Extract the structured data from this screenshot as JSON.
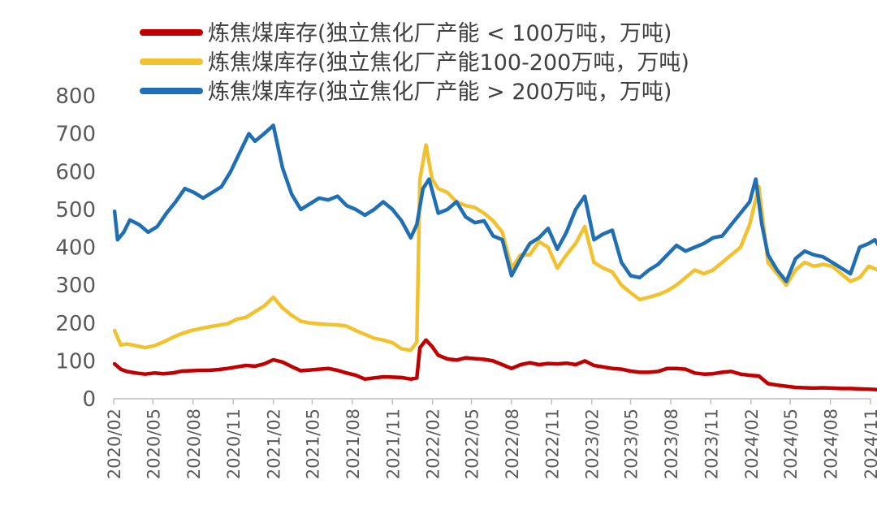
{
  "chart_data": {
    "type": "line",
    "title": "",
    "xlabel": "",
    "ylabel": "",
    "ylim": [
      0,
      800
    ],
    "yticks": [
      0,
      100,
      200,
      300,
      400,
      500,
      600,
      700,
      800
    ],
    "xlim": [
      "2020-02",
      "2024-11"
    ],
    "xticks": [
      "2020/02",
      "2020/05",
      "2020/08",
      "2020/11",
      "2021/02",
      "2021/05",
      "2021/08",
      "2021/11",
      "2022/02",
      "2022/05",
      "2022/08",
      "2022/11",
      "2023/02",
      "2023/05",
      "2023/08",
      "2023/11",
      "2024/02",
      "2024/05",
      "2024/08",
      "2024/11"
    ],
    "grid": false,
    "legend_position": "top",
    "series": [
      {
        "name": "炼焦煤库存(独立焦化厂产能 < 100万吨，万吨)",
        "color": "#c00000",
        "points": [
          [
            "2020-02-03",
            92
          ],
          [
            "2020-02-17",
            78
          ],
          [
            "2020-03-02",
            72
          ],
          [
            "2020-03-23",
            68
          ],
          [
            "2020-04-13",
            65
          ],
          [
            "2020-05-04",
            68
          ],
          [
            "2020-05-25",
            66
          ],
          [
            "2020-06-15",
            68
          ],
          [
            "2020-07-06",
            73
          ],
          [
            "2020-07-27",
            74
          ],
          [
            "2020-08-17",
            75
          ],
          [
            "2020-09-07",
            75
          ],
          [
            "2020-09-28",
            77
          ],
          [
            "2020-10-19",
            80
          ],
          [
            "2020-11-09",
            84
          ],
          [
            "2020-11-30",
            88
          ],
          [
            "2020-12-21",
            86
          ],
          [
            "2021-01-11",
            92
          ],
          [
            "2021-02-01",
            103
          ],
          [
            "2021-02-22",
            97
          ],
          [
            "2021-03-15",
            85
          ],
          [
            "2021-04-05",
            74
          ],
          [
            "2021-04-26",
            76
          ],
          [
            "2021-05-17",
            78
          ],
          [
            "2021-06-07",
            80
          ],
          [
            "2021-06-28",
            75
          ],
          [
            "2021-07-19",
            68
          ],
          [
            "2021-08-09",
            62
          ],
          [
            "2021-08-30",
            52
          ],
          [
            "2021-09-20",
            55
          ],
          [
            "2021-10-11",
            58
          ],
          [
            "2021-11-01",
            57
          ],
          [
            "2021-11-22",
            56
          ],
          [
            "2021-12-13",
            52
          ],
          [
            "2021-12-27",
            55
          ],
          [
            "2022-01-03",
            135
          ],
          [
            "2022-01-17",
            155
          ],
          [
            "2022-01-31",
            138
          ],
          [
            "2022-02-14",
            115
          ],
          [
            "2022-03-07",
            105
          ],
          [
            "2022-03-28",
            102
          ],
          [
            "2022-04-18",
            108
          ],
          [
            "2022-05-09",
            106
          ],
          [
            "2022-05-30",
            104
          ],
          [
            "2022-06-20",
            100
          ],
          [
            "2022-07-11",
            90
          ],
          [
            "2022-08-01",
            80
          ],
          [
            "2022-08-22",
            90
          ],
          [
            "2022-09-12",
            95
          ],
          [
            "2022-10-03",
            90
          ],
          [
            "2022-10-24",
            93
          ],
          [
            "2022-11-14",
            92
          ],
          [
            "2022-12-05",
            94
          ],
          [
            "2022-12-26",
            90
          ],
          [
            "2023-01-16",
            100
          ],
          [
            "2023-02-06",
            88
          ],
          [
            "2023-02-27",
            84
          ],
          [
            "2023-03-20",
            80
          ],
          [
            "2023-04-10",
            78
          ],
          [
            "2023-05-01",
            73
          ],
          [
            "2023-05-22",
            70
          ],
          [
            "2023-06-12",
            70
          ],
          [
            "2023-07-03",
            72
          ],
          [
            "2023-07-24",
            80
          ],
          [
            "2023-08-14",
            80
          ],
          [
            "2023-09-04",
            78
          ],
          [
            "2023-09-25",
            68
          ],
          [
            "2023-10-16",
            65
          ],
          [
            "2023-11-06",
            66
          ],
          [
            "2023-11-27",
            70
          ],
          [
            "2023-12-18",
            72
          ],
          [
            "2024-01-08",
            65
          ],
          [
            "2024-01-29",
            62
          ],
          [
            "2024-02-19",
            60
          ],
          [
            "2024-03-11",
            40
          ],
          [
            "2024-04-01",
            36
          ],
          [
            "2024-04-22",
            33
          ],
          [
            "2024-05-13",
            30
          ],
          [
            "2024-06-03",
            29
          ],
          [
            "2024-06-24",
            28
          ],
          [
            "2024-07-15",
            29
          ],
          [
            "2024-08-05",
            28
          ],
          [
            "2024-08-26",
            27
          ],
          [
            "2024-09-16",
            27
          ],
          [
            "2024-10-07",
            26
          ],
          [
            "2024-10-28",
            25
          ],
          [
            "2024-11-18",
            24
          ]
        ]
      },
      {
        "name": "炼焦煤库存(独立焦化厂产能100-200万吨，万吨)",
        "color": "#f2c12e",
        "points": [
          [
            "2020-02-03",
            180
          ],
          [
            "2020-02-17",
            142
          ],
          [
            "2020-03-02",
            145
          ],
          [
            "2020-03-23",
            140
          ],
          [
            "2020-04-13",
            135
          ],
          [
            "2020-05-04",
            140
          ],
          [
            "2020-05-25",
            150
          ],
          [
            "2020-06-15",
            162
          ],
          [
            "2020-07-06",
            172
          ],
          [
            "2020-07-27",
            180
          ],
          [
            "2020-08-17",
            185
          ],
          [
            "2020-09-07",
            190
          ],
          [
            "2020-09-28",
            194
          ],
          [
            "2020-10-19",
            198
          ],
          [
            "2020-11-09",
            210
          ],
          [
            "2020-11-30",
            215
          ],
          [
            "2020-12-21",
            230
          ],
          [
            "2021-01-11",
            245
          ],
          [
            "2021-02-01",
            268
          ],
          [
            "2021-02-22",
            240
          ],
          [
            "2021-03-15",
            220
          ],
          [
            "2021-04-05",
            205
          ],
          [
            "2021-04-26",
            200
          ],
          [
            "2021-05-17",
            198
          ],
          [
            "2021-06-07",
            196
          ],
          [
            "2021-06-28",
            195
          ],
          [
            "2021-07-19",
            192
          ],
          [
            "2021-08-09",
            180
          ],
          [
            "2021-08-30",
            170
          ],
          [
            "2021-09-20",
            160
          ],
          [
            "2021-10-11",
            155
          ],
          [
            "2021-11-01",
            148
          ],
          [
            "2021-11-22",
            132
          ],
          [
            "2021-12-13",
            128
          ],
          [
            "2021-12-27",
            150
          ],
          [
            "2022-01-03",
            580
          ],
          [
            "2022-01-17",
            670
          ],
          [
            "2022-01-31",
            580
          ],
          [
            "2022-02-14",
            555
          ],
          [
            "2022-03-07",
            545
          ],
          [
            "2022-03-28",
            520
          ],
          [
            "2022-04-18",
            510
          ],
          [
            "2022-05-09",
            505
          ],
          [
            "2022-05-30",
            490
          ],
          [
            "2022-06-20",
            470
          ],
          [
            "2022-07-11",
            440
          ],
          [
            "2022-08-01",
            345
          ],
          [
            "2022-08-22",
            380
          ],
          [
            "2022-09-12",
            380
          ],
          [
            "2022-10-03",
            415
          ],
          [
            "2022-10-24",
            400
          ],
          [
            "2022-11-14",
            345
          ],
          [
            "2022-12-05",
            380
          ],
          [
            "2022-12-26",
            410
          ],
          [
            "2023-01-16",
            455
          ],
          [
            "2023-02-06",
            360
          ],
          [
            "2023-02-27",
            345
          ],
          [
            "2023-03-20",
            335
          ],
          [
            "2023-04-10",
            300
          ],
          [
            "2023-05-01",
            280
          ],
          [
            "2023-05-22",
            262
          ],
          [
            "2023-06-12",
            268
          ],
          [
            "2023-07-03",
            275
          ],
          [
            "2023-07-24",
            285
          ],
          [
            "2023-08-14",
            300
          ],
          [
            "2023-09-04",
            320
          ],
          [
            "2023-09-25",
            340
          ],
          [
            "2023-10-16",
            330
          ],
          [
            "2023-11-06",
            340
          ],
          [
            "2023-11-27",
            360
          ],
          [
            "2023-12-18",
            380
          ],
          [
            "2024-01-08",
            400
          ],
          [
            "2024-01-29",
            460
          ],
          [
            "2024-02-19",
            560
          ],
          [
            "2024-03-11",
            360
          ],
          [
            "2024-04-01",
            330
          ],
          [
            "2024-04-22",
            300
          ],
          [
            "2024-05-13",
            340
          ],
          [
            "2024-06-03",
            360
          ],
          [
            "2024-06-24",
            350
          ],
          [
            "2024-07-15",
            355
          ],
          [
            "2024-08-05",
            350
          ],
          [
            "2024-08-26",
            330
          ],
          [
            "2024-09-16",
            310
          ],
          [
            "2024-10-07",
            320
          ],
          [
            "2024-10-28",
            350
          ],
          [
            "2024-11-18",
            340
          ]
        ]
      },
      {
        "name": "炼焦煤库存(独立焦化厂产能 > 200万吨，万吨)",
        "color": "#1f6fb5",
        "points": [
          [
            "2020-02-03",
            495
          ],
          [
            "2020-02-10",
            420
          ],
          [
            "2020-02-24",
            440
          ],
          [
            "2020-03-09",
            472
          ],
          [
            "2020-03-30",
            460
          ],
          [
            "2020-04-20",
            440
          ],
          [
            "2020-05-11",
            455
          ],
          [
            "2020-06-01",
            490
          ],
          [
            "2020-06-22",
            520
          ],
          [
            "2020-07-13",
            555
          ],
          [
            "2020-08-03",
            545
          ],
          [
            "2020-08-24",
            530
          ],
          [
            "2020-09-14",
            545
          ],
          [
            "2020-10-05",
            560
          ],
          [
            "2020-10-26",
            600
          ],
          [
            "2020-11-16",
            650
          ],
          [
            "2020-12-07",
            700
          ],
          [
            "2020-12-21",
            680
          ],
          [
            "2021-01-11",
            700
          ],
          [
            "2021-02-01",
            722
          ],
          [
            "2021-02-22",
            610
          ],
          [
            "2021-03-15",
            540
          ],
          [
            "2021-04-05",
            500
          ],
          [
            "2021-04-26",
            515
          ],
          [
            "2021-05-17",
            530
          ],
          [
            "2021-06-07",
            525
          ],
          [
            "2021-06-28",
            535
          ],
          [
            "2021-07-19",
            510
          ],
          [
            "2021-08-09",
            500
          ],
          [
            "2021-08-30",
            485
          ],
          [
            "2021-09-20",
            500
          ],
          [
            "2021-10-11",
            520
          ],
          [
            "2021-11-01",
            500
          ],
          [
            "2021-11-22",
            470
          ],
          [
            "2021-12-13",
            425
          ],
          [
            "2021-12-27",
            460
          ],
          [
            "2022-01-10",
            555
          ],
          [
            "2022-01-24",
            580
          ],
          [
            "2022-02-14",
            490
          ],
          [
            "2022-03-07",
            500
          ],
          [
            "2022-03-28",
            520
          ],
          [
            "2022-04-18",
            480
          ],
          [
            "2022-05-09",
            465
          ],
          [
            "2022-05-30",
            470
          ],
          [
            "2022-06-20",
            430
          ],
          [
            "2022-07-11",
            420
          ],
          [
            "2022-08-01",
            325
          ],
          [
            "2022-08-22",
            370
          ],
          [
            "2022-09-12",
            410
          ],
          [
            "2022-10-03",
            425
          ],
          [
            "2022-10-24",
            450
          ],
          [
            "2022-11-14",
            395
          ],
          [
            "2022-12-05",
            440
          ],
          [
            "2022-12-26",
            500
          ],
          [
            "2023-01-16",
            535
          ],
          [
            "2023-02-06",
            420
          ],
          [
            "2023-02-27",
            435
          ],
          [
            "2023-03-20",
            445
          ],
          [
            "2023-04-10",
            360
          ],
          [
            "2023-05-01",
            325
          ],
          [
            "2023-05-22",
            320
          ],
          [
            "2023-06-12",
            340
          ],
          [
            "2023-07-03",
            355
          ],
          [
            "2023-07-24",
            380
          ],
          [
            "2023-08-14",
            405
          ],
          [
            "2023-09-04",
            390
          ],
          [
            "2023-09-25",
            400
          ],
          [
            "2023-10-16",
            410
          ],
          [
            "2023-11-06",
            425
          ],
          [
            "2023-11-27",
            430
          ],
          [
            "2023-12-18",
            460
          ],
          [
            "2024-01-08",
            490
          ],
          [
            "2024-01-29",
            520
          ],
          [
            "2024-02-12",
            580
          ],
          [
            "2024-02-26",
            460
          ],
          [
            "2024-03-11",
            380
          ],
          [
            "2024-04-01",
            340
          ],
          [
            "2024-04-22",
            310
          ],
          [
            "2024-05-13",
            370
          ],
          [
            "2024-06-03",
            390
          ],
          [
            "2024-06-24",
            380
          ],
          [
            "2024-07-15",
            375
          ],
          [
            "2024-08-05",
            360
          ],
          [
            "2024-08-26",
            345
          ],
          [
            "2024-09-16",
            330
          ],
          [
            "2024-10-07",
            400
          ],
          [
            "2024-10-28",
            410
          ],
          [
            "2024-11-11",
            420
          ],
          [
            "2024-11-25",
            395
          ]
        ]
      }
    ]
  }
}
